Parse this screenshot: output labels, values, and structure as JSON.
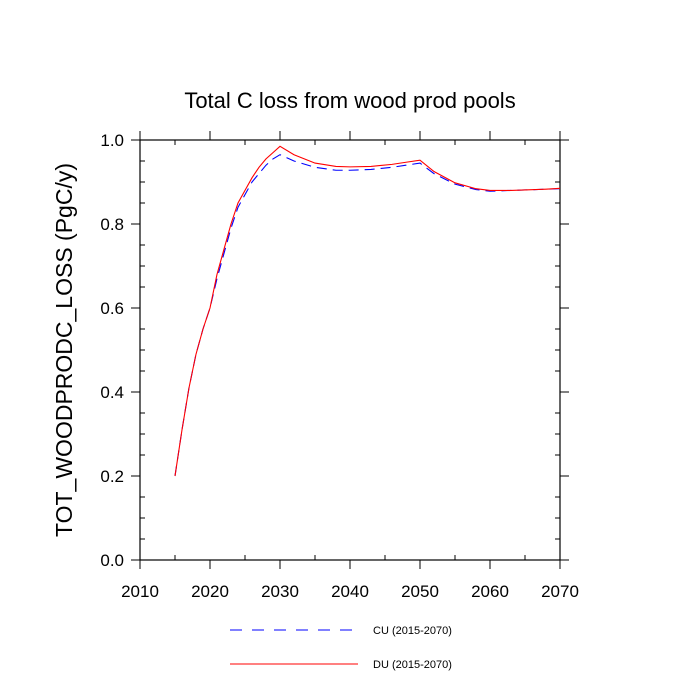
{
  "chart_data": {
    "type": "line",
    "title": "Total C loss from wood prod pools",
    "xlabel": "",
    "ylabel": "TOT_WOODPRODC_LOSS  (PgC/y)",
    "xlim": [
      2010,
      2070
    ],
    "ylim": [
      0.0,
      1.0
    ],
    "xticks": [
      2010,
      2020,
      2030,
      2040,
      2050,
      2060,
      2070
    ],
    "xtick_labels": [
      "2010",
      "2020",
      "2030",
      "2040",
      "2050",
      "2060",
      "2070"
    ],
    "yticks": [
      0.0,
      0.2,
      0.4,
      0.6,
      0.8,
      1.0
    ],
    "ytick_labels": [
      "0.0",
      "0.2",
      "0.4",
      "0.6",
      "0.8",
      "1.0"
    ],
    "grid": false,
    "legend_position": "bottom",
    "series": [
      {
        "name": "CU (2015-2070)",
        "color": "#0000ff",
        "dash": "dashed",
        "x": [
          2015,
          2016,
          2017,
          2018,
          2019,
          2020,
          2021,
          2022,
          2023,
          2024,
          2025,
          2026,
          2027,
          2028,
          2029,
          2030,
          2032,
          2035,
          2038,
          2040,
          2043,
          2046,
          2048,
          2050,
          2052,
          2055,
          2058,
          2060,
          2063,
          2065,
          2068,
          2070
        ],
        "y": [
          0.2,
          0.31,
          0.41,
          0.49,
          0.55,
          0.6,
          0.67,
          0.73,
          0.79,
          0.84,
          0.87,
          0.9,
          0.92,
          0.94,
          0.955,
          0.965,
          0.95,
          0.935,
          0.928,
          0.928,
          0.93,
          0.935,
          0.94,
          0.945,
          0.92,
          0.895,
          0.882,
          0.878,
          0.88,
          0.881,
          0.883,
          0.884
        ]
      },
      {
        "name": "DU (2015-2070)",
        "color": "#ff0000",
        "dash": "solid",
        "x": [
          2015,
          2016,
          2017,
          2018,
          2019,
          2020,
          2021,
          2022,
          2023,
          2024,
          2025,
          2026,
          2027,
          2028,
          2029,
          2030,
          2032,
          2035,
          2038,
          2040,
          2043,
          2046,
          2048,
          2050,
          2052,
          2055,
          2058,
          2060,
          2063,
          2065,
          2068,
          2070
        ],
        "y": [
          0.2,
          0.31,
          0.41,
          0.49,
          0.55,
          0.6,
          0.68,
          0.74,
          0.8,
          0.85,
          0.88,
          0.91,
          0.935,
          0.955,
          0.97,
          0.985,
          0.965,
          0.945,
          0.937,
          0.936,
          0.937,
          0.942,
          0.947,
          0.952,
          0.925,
          0.898,
          0.884,
          0.88,
          0.88,
          0.881,
          0.883,
          0.885
        ]
      }
    ]
  }
}
